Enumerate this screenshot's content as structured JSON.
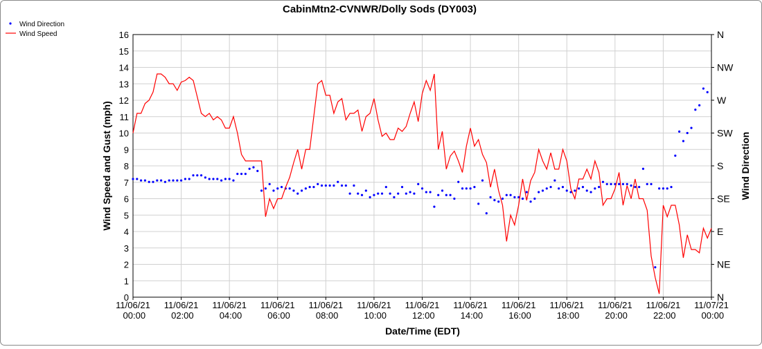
{
  "chart_data": {
    "type": "line",
    "title": "CabinMtn2-CVNWR/Dolly Sods (DY003)",
    "xlabel": "Date/Time (EDT)",
    "ylabel": "Wind Speed and Gust (mph)",
    "y2label": "Wind Direction",
    "legend": "top-left",
    "grid": true,
    "xlim": [
      "11/06/21 00:00",
      "11/07/21 00:00"
    ],
    "xticks": [
      "11/06/21 00:00",
      "11/06/21 02:00",
      "11/06/21 04:00",
      "11/06/21 06:00",
      "11/06/21 08:00",
      "11/06/21 10:00",
      "11/06/21 12:00",
      "11/06/21 14:00",
      "11/06/21 16:00",
      "11/06/21 18:00",
      "11/06/21 20:00",
      "11/06/21 22:00",
      "11/07/21 00:00"
    ],
    "ylim": [
      0,
      16
    ],
    "yticks": [
      0,
      1,
      2,
      3,
      4,
      5,
      6,
      7,
      8,
      9,
      10,
      11,
      12,
      13,
      14,
      15,
      16
    ],
    "y2lim": [
      0,
      360
    ],
    "y2ticks": [
      {
        "value": 0,
        "label": "N"
      },
      {
        "value": 45,
        "label": "NE"
      },
      {
        "value": 90,
        "label": "E"
      },
      {
        "value": 135,
        "label": "SE"
      },
      {
        "value": 180,
        "label": "S"
      },
      {
        "value": 225,
        "label": "SW"
      },
      {
        "value": 270,
        "label": "W"
      },
      {
        "value": 315,
        "label": "NW"
      },
      {
        "value": 360,
        "label": "N"
      }
    ],
    "x": [
      "11/06/21 00:00",
      "11/06/21 00:10",
      "11/06/21 00:20",
      "11/06/21 00:30",
      "11/06/21 00:40",
      "11/06/21 00:50",
      "11/06/21 01:00",
      "11/06/21 01:10",
      "11/06/21 01:20",
      "11/06/21 01:30",
      "11/06/21 01:40",
      "11/06/21 01:50",
      "11/06/21 02:00",
      "11/06/21 02:10",
      "11/06/21 02:20",
      "11/06/21 02:30",
      "11/06/21 02:40",
      "11/06/21 02:50",
      "11/06/21 03:00",
      "11/06/21 03:10",
      "11/06/21 03:20",
      "11/06/21 03:30",
      "11/06/21 03:40",
      "11/06/21 03:50",
      "11/06/21 04:00",
      "11/06/21 04:10",
      "11/06/21 04:20",
      "11/06/21 04:30",
      "11/06/21 04:40",
      "11/06/21 04:50",
      "11/06/21 05:00",
      "11/06/21 05:10",
      "11/06/21 05:20",
      "11/06/21 05:30",
      "11/06/21 05:40",
      "11/06/21 05:50",
      "11/06/21 06:00",
      "11/06/21 06:10",
      "11/06/21 06:20",
      "11/06/21 06:30",
      "11/06/21 06:40",
      "11/06/21 06:50",
      "11/06/21 07:00",
      "11/06/21 07:10",
      "11/06/21 07:20",
      "11/06/21 07:30",
      "11/06/21 07:40",
      "11/06/21 07:50",
      "11/06/21 08:00",
      "11/06/21 08:10",
      "11/06/21 08:20",
      "11/06/21 08:30",
      "11/06/21 08:40",
      "11/06/21 08:50",
      "11/06/21 09:00",
      "11/06/21 09:10",
      "11/06/21 09:20",
      "11/06/21 09:30",
      "11/06/21 09:40",
      "11/06/21 09:50",
      "11/06/21 10:00",
      "11/06/21 10:10",
      "11/06/21 10:20",
      "11/06/21 10:30",
      "11/06/21 10:40",
      "11/06/21 10:50",
      "11/06/21 11:00",
      "11/06/21 11:10",
      "11/06/21 11:20",
      "11/06/21 11:30",
      "11/06/21 11:40",
      "11/06/21 11:50",
      "11/06/21 12:00",
      "11/06/21 12:10",
      "11/06/21 12:20",
      "11/06/21 12:30",
      "11/06/21 12:40",
      "11/06/21 12:50",
      "11/06/21 13:00",
      "11/06/21 13:10",
      "11/06/21 13:20",
      "11/06/21 13:30",
      "11/06/21 13:40",
      "11/06/21 13:50",
      "11/06/21 14:00",
      "11/06/21 14:10",
      "11/06/21 14:20",
      "11/06/21 14:30",
      "11/06/21 14:40",
      "11/06/21 14:50",
      "11/06/21 15:00",
      "11/06/21 15:10",
      "11/06/21 15:20",
      "11/06/21 15:30",
      "11/06/21 15:40",
      "11/06/21 15:50",
      "11/06/21 16:00",
      "11/06/21 16:10",
      "11/06/21 16:20",
      "11/06/21 16:30",
      "11/06/21 16:40",
      "11/06/21 16:50",
      "11/06/21 17:00",
      "11/06/21 17:10",
      "11/06/21 17:20",
      "11/06/21 17:30",
      "11/06/21 17:40",
      "11/06/21 17:50",
      "11/06/21 18:00",
      "11/06/21 18:10",
      "11/06/21 18:20",
      "11/06/21 18:30",
      "11/06/21 18:40",
      "11/06/21 18:50",
      "11/06/21 19:00",
      "11/06/21 19:10",
      "11/06/21 19:20",
      "11/06/21 19:30",
      "11/06/21 19:40",
      "11/06/21 19:50",
      "11/06/21 20:00",
      "11/06/21 20:10",
      "11/06/21 20:20",
      "11/06/21 20:30",
      "11/06/21 20:40",
      "11/06/21 20:50",
      "11/06/21 21:00",
      "11/06/21 21:10",
      "11/06/21 21:20",
      "11/06/21 21:30",
      "11/06/21 21:40",
      "11/06/21 21:50",
      "11/06/21 22:00",
      "11/06/21 22:10",
      "11/06/21 22:20",
      "11/06/21 22:30",
      "11/06/21 22:40",
      "11/06/21 22:50",
      "11/06/21 23:00",
      "11/06/21 23:10",
      "11/06/21 23:20",
      "11/06/21 23:30",
      "11/06/21 23:40",
      "11/06/21 23:50",
      "11/07/21 00:00"
    ],
    "series": [
      {
        "name": "Wind Direction",
        "color": "#0000ff",
        "type": "scatter",
        "axis": "y2",
        "values": [
          162,
          162,
          160,
          160,
          158,
          158,
          160,
          160,
          158,
          160,
          160,
          160,
          160,
          162,
          162,
          167,
          167,
          167,
          164,
          162,
          162,
          162,
          160,
          162,
          162,
          160,
          169,
          169,
          169,
          176,
          178,
          173,
          146,
          149,
          155,
          146,
          149,
          151,
          149,
          149,
          146,
          142,
          146,
          149,
          151,
          151,
          155,
          153,
          153,
          153,
          153,
          158,
          153,
          153,
          142,
          153,
          142,
          140,
          146,
          137,
          140,
          142,
          142,
          151,
          142,
          137,
          142,
          151,
          142,
          144,
          142,
          155,
          149,
          144,
          144,
          124,
          140,
          146,
          140,
          140,
          135,
          158,
          149,
          149,
          149,
          151,
          128,
          160,
          115,
          137,
          133,
          131,
          135,
          140,
          140,
          137,
          137,
          135,
          144,
          131,
          135,
          144,
          146,
          149,
          151,
          160,
          149,
          151,
          146,
          144,
          146,
          149,
          151,
          146,
          144,
          149,
          151,
          158,
          155,
          155,
          155,
          155,
          155,
          155,
          153,
          151,
          151,
          176,
          155,
          155,
          41,
          149,
          149,
          149,
          151,
          194,
          227,
          214,
          225,
          232,
          257,
          263,
          286,
          281,
          null
        ]
      },
      {
        "name": "Wind Speed",
        "color": "#ff0000",
        "type": "line",
        "values": [
          10,
          11.2,
          11.2,
          11.8,
          12,
          12.5,
          13.6,
          13.6,
          13.4,
          13,
          13,
          12.6,
          13.1,
          13.2,
          13.4,
          13.2,
          12.2,
          11.2,
          11,
          11.2,
          10.8,
          11,
          10.8,
          10.3,
          10.3,
          11,
          10,
          8.7,
          8.3,
          8.3,
          8.3,
          8.3,
          8.3,
          4.9,
          6,
          5.4,
          6,
          6,
          6.7,
          7.3,
          8.2,
          9,
          7.8,
          9,
          9,
          11,
          13,
          13.2,
          12.3,
          12.3,
          11.2,
          11.9,
          12.1,
          10.8,
          11.2,
          11.2,
          11.4,
          10.1,
          11,
          11.2,
          12.1,
          10.8,
          9.8,
          10,
          9.6,
          9.6,
          10.3,
          10.1,
          10.4,
          11.2,
          11.9,
          10.7,
          12.4,
          13.2,
          12.6,
          13.6,
          9,
          10.1,
          7.8,
          8.6,
          8.9,
          8.3,
          7.6,
          9.2,
          10.3,
          9.2,
          9.6,
          8.7,
          8.2,
          6.7,
          7.8,
          6.5,
          5.6,
          3.4,
          5,
          4.4,
          5.6,
          7.2,
          5.9,
          7.1,
          7.6,
          9,
          8.3,
          7.8,
          8.8,
          7.8,
          7.8,
          9,
          8.3,
          6.6,
          6,
          7.2,
          7.2,
          7.8,
          7.2,
          8.3,
          7.6,
          5.6,
          6,
          6,
          6.6,
          7.6,
          5.6,
          6.8,
          6,
          7.2,
          6,
          6,
          5.3,
          2.5,
          1.2,
          0.2,
          5.6,
          4.9,
          5.6,
          5.6,
          4.4,
          2.4,
          3.8,
          2.9,
          2.9,
          2.7,
          4.2,
          3.6,
          4.2
        ]
      }
    ]
  }
}
